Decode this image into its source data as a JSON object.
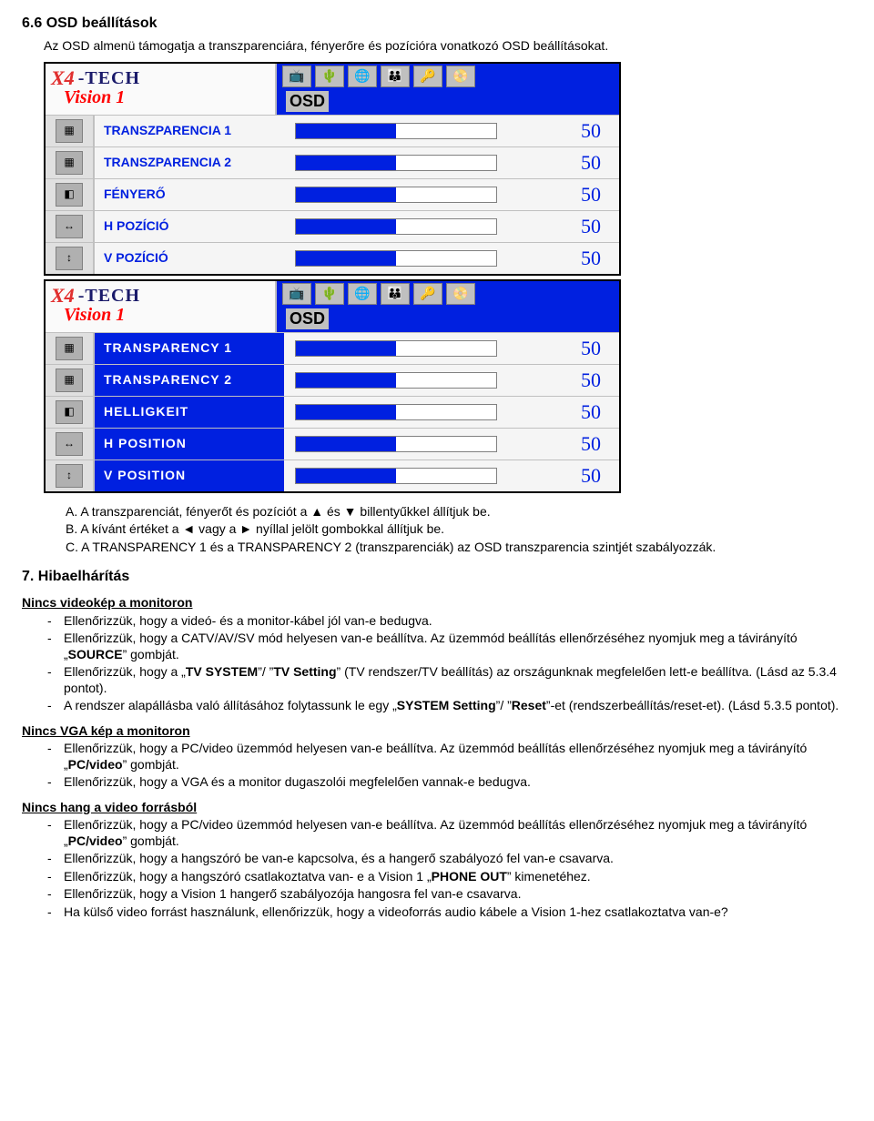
{
  "section": {
    "num": "6.6",
    "title": "6.6 OSD beállítások",
    "intro": "Az OSD almenü támogatja a transzparenciára, fényerőre és pozícióra vonatkozó OSD beállításokat."
  },
  "osd": {
    "logo1": "X4",
    "logo2": "-TECH",
    "logo3": "Vision 1",
    "tab": "OSD",
    "topicons": [
      "📺",
      "🌵",
      "🌐",
      "👪",
      "🔑",
      "📀"
    ]
  },
  "box1": {
    "rows": [
      {
        "label": "TRANSZPARENCIA 1",
        "value": "50",
        "fill": 50,
        "icon": "▦"
      },
      {
        "label": "TRANSZPARENCIA 2",
        "value": "50",
        "fill": 50,
        "icon": "▦"
      },
      {
        "label": "FÉNYERŐ",
        "value": "50",
        "fill": 50,
        "icon": "◧"
      },
      {
        "label": "H POZÍCIÓ",
        "value": "50",
        "fill": 50,
        "icon": "↔"
      },
      {
        "label": "V POZÍCIÓ",
        "value": "50",
        "fill": 50,
        "icon": "↕"
      }
    ]
  },
  "box2": {
    "rows": [
      {
        "label": "TRANSPARENCY 1",
        "value": "50",
        "fill": 50,
        "icon": "▦"
      },
      {
        "label": "TRANSPARENCY 2",
        "value": "50",
        "fill": 50,
        "icon": "▦"
      },
      {
        "label": "HELLIGKEIT",
        "value": "50",
        "fill": 50,
        "icon": "◧"
      },
      {
        "label": "H POSITION",
        "value": "50",
        "fill": 50,
        "icon": "↔"
      },
      {
        "label": "V POSITION",
        "value": "50",
        "fill": 50,
        "icon": "↕"
      }
    ]
  },
  "letters": {
    "a": "A.   A transzparenciát, fényerőt és pozíciót a ▲ és ▼ billentyűkkel állítjuk be.",
    "b": "B.   A kívánt értéket a ◄ vagy a ► nyíllal jelölt gombokkal állítjuk be.",
    "c": "C.   A TRANSPARENCY 1 és a TRANSPARENCY 2 (transzparenciák) az OSD transzparencia szintjét szabályozzák."
  },
  "h7": "7. Hibaelhárítás",
  "trouble": {
    "t1": {
      "head": "Nincs videokép a monitoron",
      "items": [
        "Ellenőrizzük, hogy a videó- és a monitor-kábel jól van-e bedugva.",
        "Ellenőrizzük, hogy a CATV/AV/SV mód helyesen van-e beállítva. Az üzemmód beállítás ellenőrzéséhez nyomjuk meg a távirányító „<b>SOURCE</b>” gombját.",
        "Ellenőrizzük, hogy a „<b>TV SYSTEM</b>”/ ”<b>TV Setting</b>” (TV rendszer/TV beállítás) az országunknak megfelelően lett-e beállítva. (Lásd az 5.3.4 pontot).",
        "A rendszer alapállásba való állításához folytassunk le egy „<b>SYSTEM Setting</b>”/ ”<b>Reset</b>”-et (rendszerbeállítás/reset-et). (Lásd 5.3.5 pontot)."
      ]
    },
    "t2": {
      "head": "Nincs VGA kép a monitoron",
      "items": [
        "Ellenőrizzük, hogy a PC/video üzemmód helyesen van-e beállítva. Az üzemmód beállítás ellenőrzéséhez nyomjuk meg a távirányító „<b>PC/video</b>” gombját.",
        "Ellenőrizzük, hogy a VGA és a monitor dugaszolói megfelelően vannak-e bedugva."
      ]
    },
    "t3": {
      "head": "Nincs hang a video forrásból",
      "items": [
        "Ellenőrizzük, hogy a PC/video üzemmód helyesen van-e beállítva. Az üzemmód beállítás ellenőrzéséhez nyomjuk meg a távirányító „<b>PC/video</b>” gombját.",
        "Ellenőrizzük, hogy a hangszóró be van-e kapcsolva, és a hangerő szabályozó fel van-e csavarva.",
        "Ellenőrizzük, hogy a hangszóró csatlakoztatva van- e a Vision 1 „<b>PHONE OUT</b>” kimenetéhez.",
        "Ellenőrizzük, hogy a Vision 1 hangerő szabályozója hangosra fel van-e csavarva.",
        "Ha külső video forrást használunk, ellenőrizzük, hogy a videoforrás audio kábele a Vision 1-hez csatlakoztatva van-e?"
      ]
    }
  }
}
